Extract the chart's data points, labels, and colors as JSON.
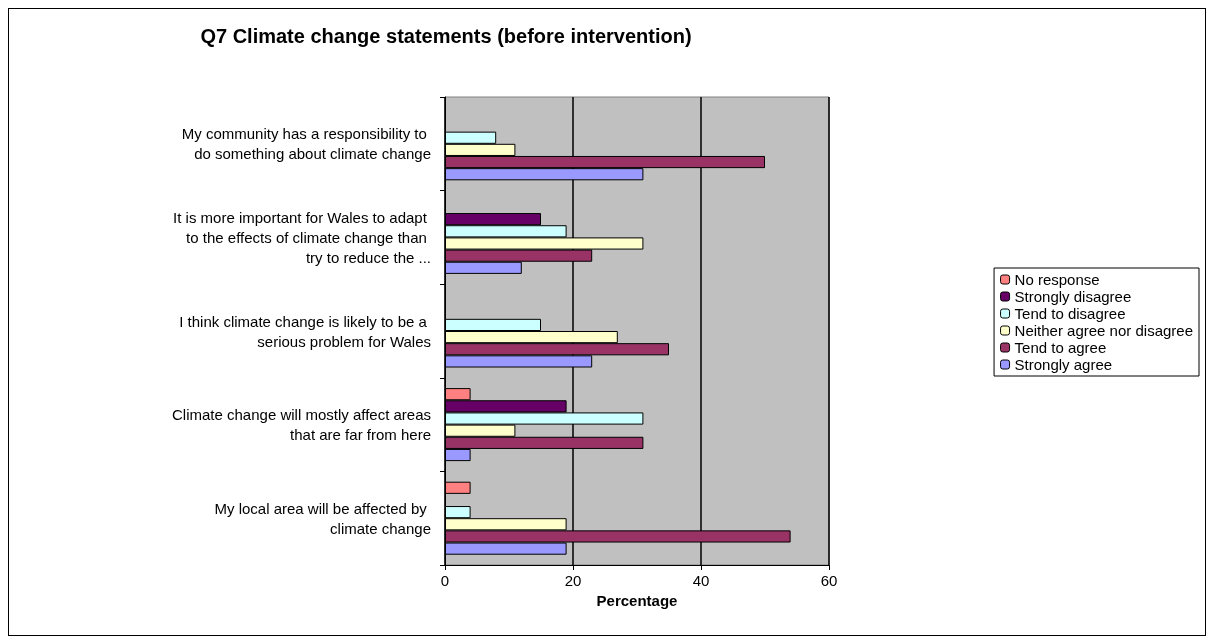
{
  "chart_data": {
    "type": "bar",
    "orientation": "horizontal",
    "title": "Q7 Climate change statements (before intervention)",
    "xlabel": "Percentage",
    "categories": [
      "My community has a responsibility to do something about climate change",
      "It is more important for Wales to adapt to the effects of climate change than try to reduce the ...",
      "I think climate change is likely to be a serious problem for Wales",
      "Climate change will mostly affect areas that are far from here",
      "My local area will be affected by climate change"
    ],
    "series": [
      {
        "name": "No response",
        "color": "#ff8080",
        "values": [
          null,
          null,
          null,
          4,
          4
        ]
      },
      {
        "name": "Strongly disagree",
        "color": "#660066",
        "values": [
          null,
          15,
          null,
          19,
          null
        ]
      },
      {
        "name": "Tend to disagree",
        "color": "#ccffff",
        "values": [
          8,
          19,
          15,
          31,
          4
        ]
      },
      {
        "name": "Neither agree nor disagree",
        "color": "#ffffcc",
        "values": [
          11,
          31,
          27,
          11,
          19
        ]
      },
      {
        "name": "Tend to agree",
        "color": "#993366",
        "values": [
          50,
          23,
          35,
          31,
          54
        ]
      },
      {
        "name": "Strongly agree",
        "color": "#9999ff",
        "values": [
          31,
          12,
          23,
          4,
          19
        ]
      }
    ],
    "xlim": [
      0,
      60
    ],
    "xticks": [
      0,
      20,
      40,
      60
    ],
    "grid": "x",
    "legend": "right"
  }
}
